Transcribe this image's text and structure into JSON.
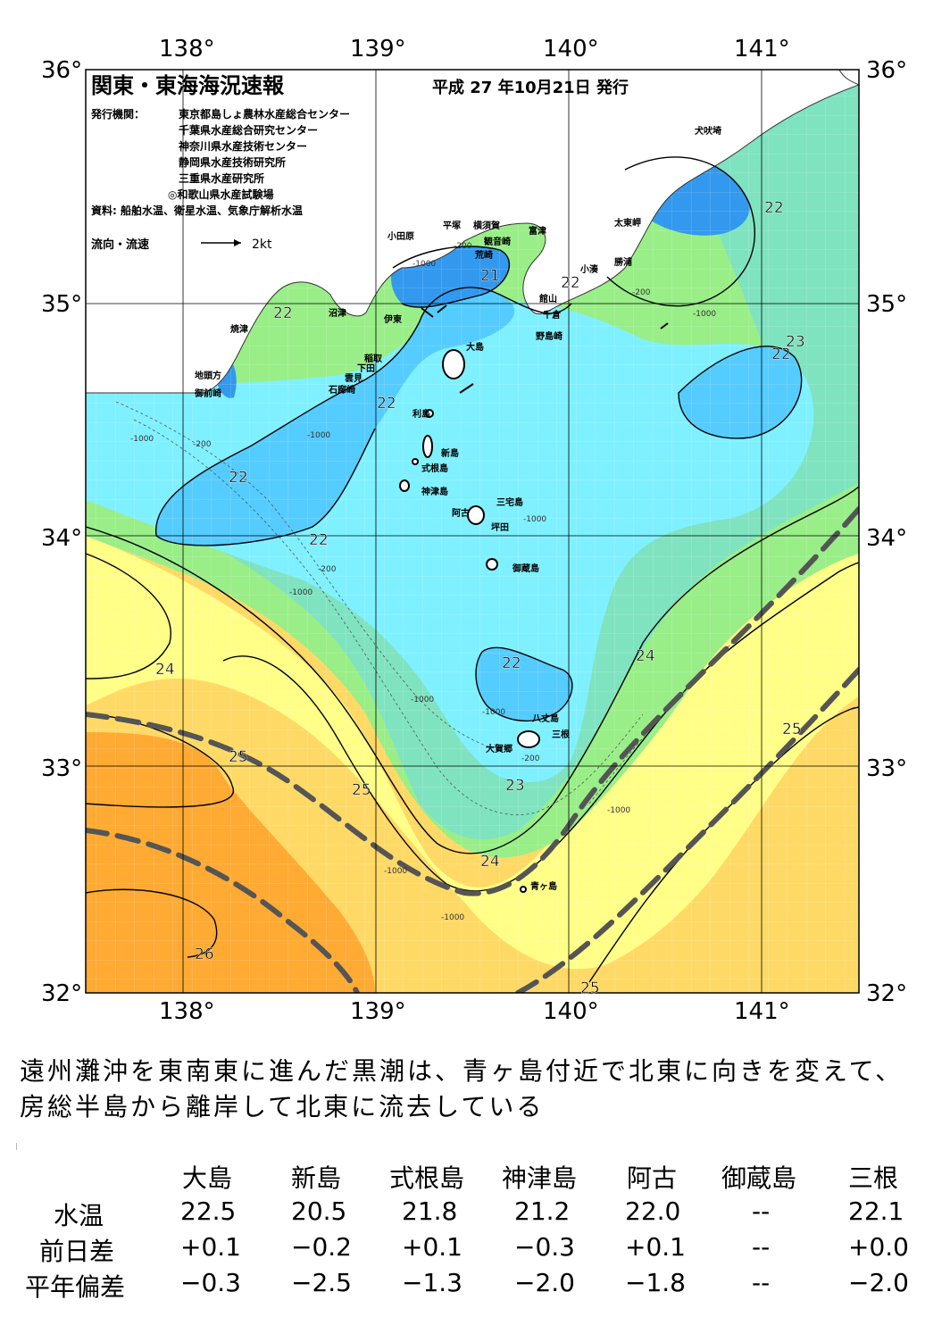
{
  "map": {
    "title": "関東・東海海況速報",
    "issue_date": "平成 27 年10月21日 発行",
    "publisher_label": "発行機関：",
    "publishers": [
      "東京都島しょ農林水産総合センター",
      "千葉県水産総合研究センター",
      "神奈川県水産技術センター",
      "静岡県水産技術研究所",
      "三重県水産研究所",
      "◎和歌山県水産試験場"
    ],
    "source": "資料: 船舶水温、衛星水温、気象庁解析水温",
    "flow_legend_label": "流向・流速",
    "flow_legend_speed": "2kt",
    "lon_labels": [
      "138°",
      "139°",
      "140°",
      "141°"
    ],
    "lat_labels": [
      "36°",
      "35°",
      "34°",
      "33°",
      "32°"
    ],
    "place_names": [
      "犬吠埼",
      "太東岬",
      "勝浦",
      "小湊",
      "富津",
      "横須賀",
      "観音崎",
      "平塚",
      "荒崎",
      "小田原",
      "館山",
      "千倉",
      "野島崎",
      "沼津",
      "伊東",
      "焼津",
      "稲取",
      "下田",
      "雲見",
      "石廊崎",
      "地頭方",
      "御前崎",
      "大島",
      "利島",
      "新島",
      "式根島",
      "神津島",
      "三宅島",
      "阿古",
      "坪田",
      "御蔵島",
      "八丈島",
      "三根",
      "大賀郷",
      "青ヶ島"
    ],
    "isotherm_labels": [
      "22",
      "22",
      "22",
      "22",
      "22",
      "22",
      "22",
      "22",
      "23",
      "23",
      "24",
      "24",
      "24",
      "25",
      "25",
      "25",
      "25",
      "26",
      "21"
    ],
    "depth_labels": [
      "-200",
      "-1000"
    ],
    "colors": {
      "t21": "#3399ee",
      "t22": "#55ccff",
      "t22b": "#7ff0ff",
      "t23": "#7fe3c0",
      "t23b": "#99ee88",
      "t24": "#ffff88",
      "t25": "#ffd966",
      "t26": "#ffaa33",
      "land": "#ffffff",
      "kuroshio": "#555555"
    }
  },
  "summary": "遠州灘沖を東南東に進んだ黒潮は、青ヶ島付近で北東に向きを変えて、房総半島から離岸して北東に流去している",
  "table": {
    "columns": [
      "大島",
      "新島",
      "式根島",
      "神津島",
      "阿古",
      "御蔵島",
      "三根"
    ],
    "rows": [
      {
        "label": "水温",
        "values": [
          "22.5",
          "20.5",
          "21.8",
          "21.2",
          "22.0",
          "--",
          "22.1"
        ]
      },
      {
        "label": "前日差",
        "values": [
          "+0.1",
          "−0.2",
          "+0.1",
          "−0.3",
          "+0.1",
          "--",
          "+0.0"
        ]
      },
      {
        "label": "平年偏差",
        "values": [
          "−0.3",
          "−2.5",
          "−1.3",
          "−2.0",
          "−1.8",
          "--",
          "−2.0"
        ]
      }
    ]
  }
}
